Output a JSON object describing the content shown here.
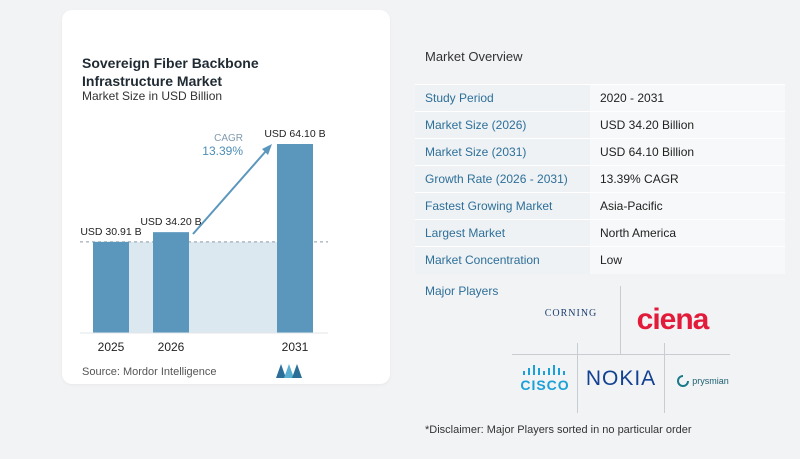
{
  "chart_data": {
    "type": "bar",
    "title": "Sovereign Fiber Backbone Infrastructure Market",
    "subtitle": "Market Size in USD Billion",
    "categories": [
      "2025",
      "2026",
      "2031"
    ],
    "values": [
      30.91,
      34.2,
      64.1
    ],
    "value_labels": [
      "USD 30.91 B",
      "USD 34.20 B",
      "USD 64.10 B"
    ],
    "cagr_label": "CAGR",
    "cagr_value": "13.39%",
    "ylim": [
      0,
      64.1
    ],
    "colors": {
      "bar": "#5b97bd",
      "band": "#dce8f0",
      "accent": "#5b97bd"
    }
  },
  "source": "Source:  Mordor Intelligence",
  "overview": {
    "title": "Market Overview",
    "rows": [
      {
        "label": "Study Period",
        "value": "2020 - 2031"
      },
      {
        "label": "Market Size (2026)",
        "value": "USD 34.20 Billion"
      },
      {
        "label": "Market Size (2031)",
        "value": "USD 64.10 Billion"
      },
      {
        "label": "Growth Rate (2026 - 2031)",
        "value": "13.39% CAGR"
      },
      {
        "label": "Fastest Growing Market",
        "value": "Asia-Pacific"
      },
      {
        "label": "Largest Market",
        "value": "North America"
      },
      {
        "label": "Market Concentration",
        "value": "Low"
      }
    ]
  },
  "players": {
    "title": "Major Players",
    "logos": {
      "corning": "CORNING",
      "ciena": "ciena",
      "cisco": "CISCO",
      "nokia": "NOKIA",
      "prysmian": "prysmian"
    }
  },
  "disclaimer": "*Disclaimer: Major Players sorted in no particular order"
}
